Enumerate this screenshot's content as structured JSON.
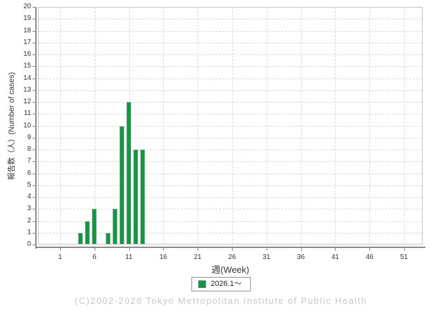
{
  "chart_data": {
    "type": "bar",
    "title": "",
    "xlabel": "週(Week)",
    "ylabel": "報告数（人）(Number of cases)",
    "x_tick_labels": [
      1,
      6,
      11,
      16,
      21,
      26,
      31,
      36,
      41,
      46,
      51
    ],
    "x_week_range": [
      1,
      53
    ],
    "ylim": [
      0,
      20
    ],
    "y_tick_step": 1,
    "grid": "dashed",
    "legend_position": "bottom-center",
    "series": [
      {
        "name": "2026.1～",
        "color": "#0a9b3e",
        "points": [
          {
            "week": 4,
            "cases": 1
          },
          {
            "week": 5,
            "cases": 2
          },
          {
            "week": 6,
            "cases": 3
          },
          {
            "week": 8,
            "cases": 1
          },
          {
            "week": 9,
            "cases": 3
          },
          {
            "week": 10,
            "cases": 10
          },
          {
            "week": 11,
            "cases": 12
          },
          {
            "week": 12,
            "cases": 8
          },
          {
            "week": 13,
            "cases": 8
          }
        ]
      }
    ]
  },
  "footer": {
    "copyright": "(C)2002-2026 Tokyo Metropolitan Institute of Public Health"
  }
}
